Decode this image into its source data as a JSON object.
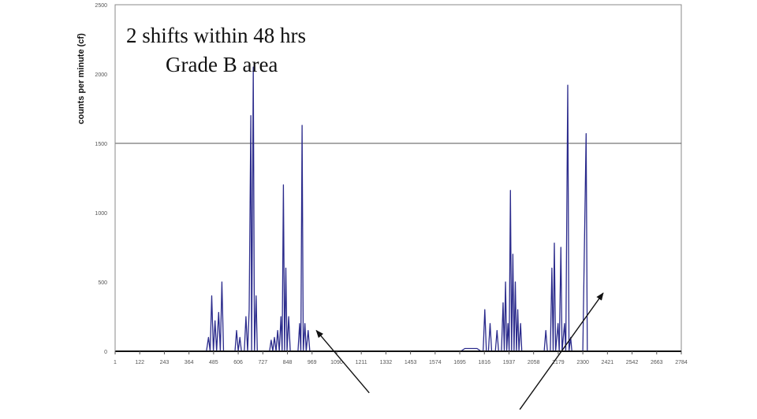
{
  "chart_data": {
    "type": "line",
    "title_line1": "2 shifts within 48 hrs",
    "title_line2": "Grade B area",
    "xlabel": "",
    "ylabel": "counts per minute (cf)",
    "x_tick_labels": [
      "1",
      "122",
      "243",
      "364",
      "485",
      "606",
      "727",
      "848",
      "969",
      "1090",
      "1211",
      "1332",
      "1453",
      "1574",
      "1695",
      "1816",
      "1937",
      "2058",
      "2179",
      "2300",
      "2421",
      "2542",
      "2663",
      "2784"
    ],
    "y_tick_labels": [
      "0",
      "500",
      "1000",
      "1500",
      "2000",
      "2500"
    ],
    "ylim": [
      0,
      2500
    ],
    "xlim": [
      1,
      2784
    ],
    "grid": "horizontal line at 1500",
    "reference_line": 1500,
    "series": [
      {
        "color": "#2b2b8c",
        "points": [
          [
            1,
            0
          ],
          [
            450,
            0
          ],
          [
            460,
            100
          ],
          [
            468,
            0
          ],
          [
            476,
            400
          ],
          [
            484,
            0
          ],
          [
            492,
            220
          ],
          [
            500,
            0
          ],
          [
            510,
            280
          ],
          [
            518,
            0
          ],
          [
            526,
            500
          ],
          [
            534,
            0
          ],
          [
            560,
            0
          ],
          [
            590,
            0
          ],
          [
            598,
            150
          ],
          [
            606,
            0
          ],
          [
            614,
            100
          ],
          [
            622,
            0
          ],
          [
            636,
            0
          ],
          [
            644,
            250
          ],
          [
            652,
            0
          ],
          [
            660,
            300
          ],
          [
            668,
            1700
          ],
          [
            672,
            0
          ],
          [
            680,
            2050
          ],
          [
            686,
            0
          ],
          [
            694,
            400
          ],
          [
            700,
            0
          ],
          [
            712,
            0
          ],
          [
            760,
            0
          ],
          [
            768,
            80
          ],
          [
            776,
            0
          ],
          [
            784,
            100
          ],
          [
            792,
            0
          ],
          [
            800,
            150
          ],
          [
            808,
            0
          ],
          [
            816,
            250
          ],
          [
            822,
            0
          ],
          [
            828,
            1200
          ],
          [
            834,
            0
          ],
          [
            840,
            600
          ],
          [
            846,
            0
          ],
          [
            854,
            250
          ],
          [
            862,
            0
          ],
          [
            880,
            0
          ],
          [
            900,
            0
          ],
          [
            908,
            200
          ],
          [
            914,
            0
          ],
          [
            920,
            1630
          ],
          [
            926,
            0
          ],
          [
            934,
            200
          ],
          [
            940,
            0
          ],
          [
            950,
            150
          ],
          [
            958,
            0
          ],
          [
            1000,
            0
          ],
          [
            1700,
            0
          ],
          [
            1720,
            20
          ],
          [
            1780,
            20
          ],
          [
            1800,
            0
          ],
          [
            1810,
            0
          ],
          [
            1818,
            300
          ],
          [
            1826,
            0
          ],
          [
            1836,
            0
          ],
          [
            1844,
            200
          ],
          [
            1852,
            0
          ],
          [
            1870,
            0
          ],
          [
            1878,
            150
          ],
          [
            1886,
            0
          ],
          [
            1900,
            0
          ],
          [
            1908,
            350
          ],
          [
            1914,
            0
          ],
          [
            1920,
            500
          ],
          [
            1926,
            0
          ],
          [
            1932,
            200
          ],
          [
            1938,
            0
          ],
          [
            1944,
            1160
          ],
          [
            1950,
            0
          ],
          [
            1956,
            700
          ],
          [
            1962,
            0
          ],
          [
            1968,
            500
          ],
          [
            1974,
            0
          ],
          [
            1980,
            300
          ],
          [
            1986,
            0
          ],
          [
            1994,
            200
          ],
          [
            2000,
            0
          ],
          [
            2040,
            0
          ],
          [
            2110,
            0
          ],
          [
            2118,
            150
          ],
          [
            2126,
            0
          ],
          [
            2140,
            0
          ],
          [
            2148,
            600
          ],
          [
            2154,
            0
          ],
          [
            2160,
            780
          ],
          [
            2166,
            0
          ],
          [
            2178,
            200
          ],
          [
            2184,
            0
          ],
          [
            2192,
            750
          ],
          [
            2198,
            0
          ],
          [
            2210,
            200
          ],
          [
            2216,
            0
          ],
          [
            2226,
            1920
          ],
          [
            2232,
            0
          ],
          [
            2240,
            100
          ],
          [
            2246,
            0
          ],
          [
            2300,
            0
          ],
          [
            2316,
            1570
          ],
          [
            2322,
            0
          ],
          [
            2784,
            0
          ]
        ]
      }
    ]
  },
  "annotations": [
    {
      "type": "arrow",
      "from": [
        1250,
        -300
      ],
      "to": [
        990,
        150
      ]
    },
    {
      "type": "arrow",
      "from": [
        1990,
        -420
      ],
      "to": [
        2400,
        420
      ]
    }
  ]
}
